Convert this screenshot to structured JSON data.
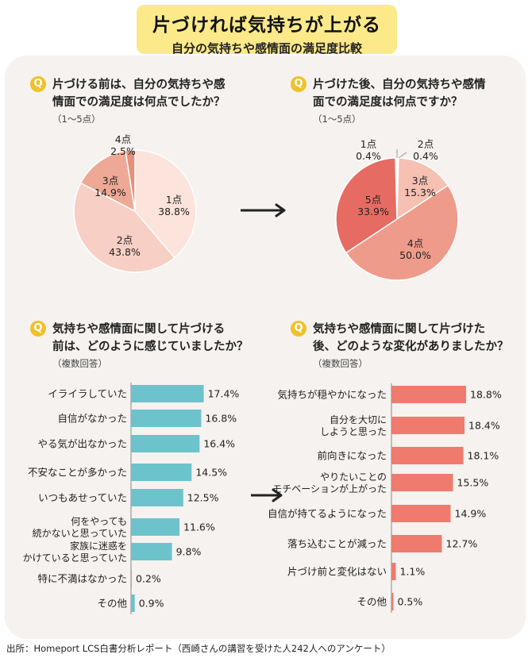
{
  "header": {
    "title": "片づければ気持ちが上がる",
    "subtitle": "自分の気持ちや感情面の満足度比較"
  },
  "colors": {
    "title_bg": "#fbe98a",
    "panel_bg": "#f5f2ef",
    "q_icon": "#f0c12a",
    "bar_before": "#6cc3cc",
    "bar_after": "#ee7b6e"
  },
  "questions": [
    {
      "icon": "Q",
      "lines": [
        "片づける前は、自分の気持ちや感",
        "情面での満足度は何点でしたか？"
      ],
      "note": "（1～5点）"
    },
    {
      "icon": "Q",
      "lines": [
        "片づけた後、自分の気持ちや感情",
        "面での満足度は何点ですか？"
      ],
      "note": "（1～5点）"
    },
    {
      "icon": "Q",
      "lines": [
        "気持ちや感情面に関して片づける",
        "前は、どのように感じていましたか？"
      ],
      "note": "（複数回答）"
    },
    {
      "icon": "Q",
      "lines": [
        "気持ちや感情面に関して片づけた",
        "後、どのような変化がありましたか？"
      ],
      "note": "（複数回答）"
    }
  ],
  "arrows": [
    "→",
    "→"
  ],
  "chart_data": [
    {
      "type": "pie",
      "labels": [
        "1点",
        "2点",
        "3点",
        "4点"
      ],
      "values": [
        38.8,
        43.8,
        14.9,
        2.5
      ],
      "value_labels": [
        "38.8%",
        "43.8%",
        "14.9%",
        "2.5%"
      ],
      "colors": [
        "#fce4dc",
        "#f7cfc4",
        "#eea996",
        "#e4907c"
      ]
    },
    {
      "type": "pie",
      "labels": [
        "2点",
        "3点",
        "4点",
        "5点",
        "1点"
      ],
      "values": [
        0.4,
        15.3,
        50.0,
        33.9,
        0.4
      ],
      "value_labels": [
        "0.4%",
        "15.3%",
        "50.0%",
        "33.9%",
        "0.4%"
      ],
      "colors": [
        "#fce4dc",
        "#f6c0b2",
        "#ef9b8b",
        "#e66c63",
        "#fce4dc"
      ]
    },
    {
      "type": "bar",
      "orientation": "horizontal",
      "categories": [
        [
          "イライラしていた"
        ],
        [
          "自信がなかった"
        ],
        [
          "やる気が出なかった"
        ],
        [
          "不安なことが多かった"
        ],
        [
          "いつもあせっていた"
        ],
        [
          "何をやっても",
          "続かないと思っていた"
        ],
        [
          "家族に迷惑を",
          "かけていると思っていた"
        ],
        [
          "特に不満はなかった"
        ],
        [
          "その他"
        ]
      ],
      "values": [
        17.4,
        16.8,
        16.4,
        14.5,
        12.5,
        11.6,
        9.8,
        0.2,
        0.9
      ],
      "value_labels": [
        "17.4%",
        "16.8%",
        "16.4%",
        "14.5%",
        "12.5%",
        "11.6%",
        "9.8%",
        "0.2%",
        "0.9%"
      ],
      "color": "#6cc3cc"
    },
    {
      "type": "bar",
      "orientation": "horizontal",
      "categories": [
        [
          "気持ちが穏やかになった"
        ],
        [
          "自分を大切に",
          "しようと思った"
        ],
        [
          "前向きになった"
        ],
        [
          "やりたいことの",
          "モチベーションが上がった"
        ],
        [
          "自信が持てるようになった"
        ],
        [
          "落ち込むことが減った"
        ],
        [
          "片づけ前と変化はない"
        ],
        [
          "その他"
        ]
      ],
      "values": [
        18.8,
        18.4,
        18.1,
        15.5,
        14.9,
        12.7,
        1.1,
        0.5
      ],
      "value_labels": [
        "18.8%",
        "18.4%",
        "18.1%",
        "15.5%",
        "14.9%",
        "12.7%",
        "1.1%",
        "0.5%"
      ],
      "color": "#ee7b6e"
    }
  ],
  "footer": {
    "source": "出所：Homeport LCS白書分析レポート（西崎さんの講習を受けた人242人へのアンケート）"
  }
}
